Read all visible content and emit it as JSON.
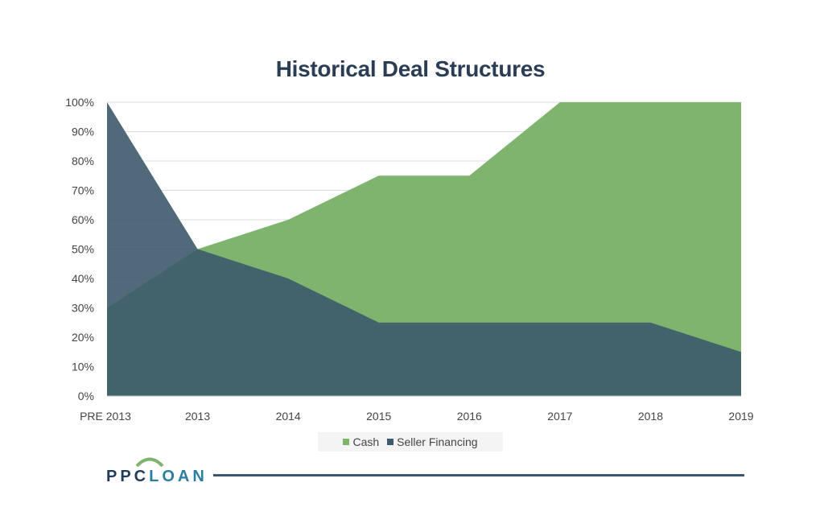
{
  "chart_data": {
    "type": "area",
    "title": "Historical Deal Structures",
    "categories": [
      "PRE 2013",
      "2013",
      "2014",
      "2015",
      "2016",
      "2017",
      "2018",
      "2019"
    ],
    "series": [
      {
        "name": "Cash",
        "color": "#7fb46f",
        "values": [
          30,
          50,
          60,
          75,
          75,
          100,
          100,
          100
        ]
      },
      {
        "name": "Seller Financing",
        "color": "#3d5a6c",
        "values": [
          100,
          50,
          40,
          25,
          25,
          25,
          25,
          15
        ]
      }
    ],
    "ylim": [
      0,
      100
    ],
    "yticks": [
      "0%",
      "10%",
      "20%",
      "30%",
      "40%",
      "50%",
      "60%",
      "70%",
      "80%",
      "90%",
      "100%"
    ],
    "grid": true,
    "legend_position": "bottom"
  },
  "logo": {
    "ppc": "PPC",
    "loan": "LOAN"
  }
}
